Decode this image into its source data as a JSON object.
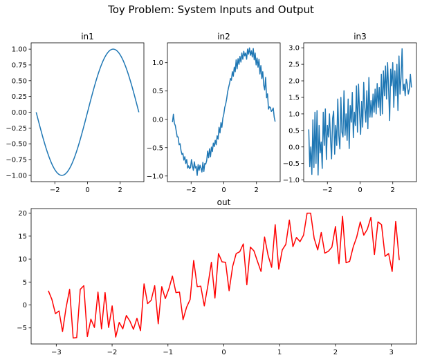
{
  "title": "Toy Problem: System Inputs and Output",
  "colors": {
    "blue": "#1f77b4",
    "red": "#ff0000",
    "axis": "#000000"
  },
  "chart_data": [
    {
      "type": "line",
      "title": "in1",
      "color": "#1f77b4",
      "xlim": [
        -3.45,
        3.45
      ],
      "ylim": [
        -1.1,
        1.1
      ],
      "xticks": [
        -2,
        0,
        2
      ],
      "yticks": [
        -1.0,
        -0.75,
        -0.5,
        -0.25,
        0.0,
        0.25,
        0.5,
        0.75,
        1.0
      ],
      "ytick_labels": [
        "−1.00",
        "−0.75",
        "−0.50",
        "−0.25",
        "0.00",
        "0.25",
        "0.50",
        "0.75",
        "1.00"
      ],
      "series": [
        {
          "function": "sin",
          "x_range": [
            -3.1416,
            3.1416
          ]
        }
      ]
    },
    {
      "type": "line",
      "title": "in2",
      "color": "#1f77b4",
      "xlim": [
        -3.45,
        3.45
      ],
      "ylim": [
        -1.1,
        1.35
      ],
      "xticks": [
        -2,
        0,
        2
      ],
      "yticks": [
        -1.0,
        -0.5,
        0.0,
        0.5,
        1.0
      ],
      "ytick_labels": [
        "−1.0",
        "−0.5",
        "0.0",
        "0.5",
        "1.0"
      ],
      "series": [
        {
          "x_range": [
            -3.1416,
            3.1416
          ],
          "y": [
            -0.05,
            0.09,
            -0.07,
            -0.11,
            -0.21,
            -0.31,
            -0.31,
            -0.45,
            -0.43,
            -0.55,
            -0.62,
            -0.6,
            -0.72,
            -0.66,
            -0.78,
            -0.71,
            -0.86,
            -0.82,
            -0.87,
            -0.85,
            -0.71,
            -0.82,
            -0.9,
            -0.75,
            -0.86,
            -0.83,
            -0.99,
            -0.8,
            -0.9,
            -0.81,
            -0.86,
            -0.93,
            -0.76,
            -0.92,
            -0.78,
            -0.79,
            -0.73,
            -0.56,
            -0.68,
            -0.52,
            -0.66,
            -0.49,
            -0.57,
            -0.42,
            -0.48,
            -0.37,
            -0.45,
            -0.29,
            -0.35,
            -0.14,
            -0.24,
            -0.06,
            -0.14,
            0.02,
            0.09,
            0.21,
            0.27,
            0.36,
            0.48,
            0.56,
            0.63,
            0.72,
            0.69,
            0.84,
            0.76,
            0.92,
            0.84,
            1.05,
            0.89,
            1.07,
            0.97,
            1.11,
            1.01,
            1.17,
            1.06,
            1.2,
            1.12,
            1.17,
            1.06,
            1.24,
            1.15,
            1.26,
            1.13,
            1.21,
            1.1,
            1.25,
            1.05,
            1.17,
            0.96,
            1.08,
            0.92,
            1.06,
            0.8,
            0.95,
            0.72,
            0.84,
            0.6,
            0.52,
            0.74,
            0.38,
            0.45,
            0.18,
            0.22,
            0.21,
            0.14,
            0.16,
            0.2,
            0.04,
            -0.04
          ]
        }
      ]
    },
    {
      "type": "line",
      "title": "in3",
      "color": "#1f77b4",
      "xlim": [
        -3.45,
        3.45
      ],
      "ylim": [
        -1.05,
        3.15
      ],
      "xticks": [
        -2,
        0,
        2
      ],
      "yticks": [
        -1.0,
        -0.5,
        0.0,
        0.5,
        1.0,
        1.5,
        2.0,
        2.5,
        3.0
      ],
      "ytick_labels": [
        "−1.0",
        "−0.5",
        "0.0",
        "0.5",
        "1.0",
        "1.5",
        "2.0",
        "2.5",
        "3.0"
      ],
      "series": [
        {
          "x_range": [
            -3.1416,
            3.1416
          ],
          "y": [
            0.53,
            -0.6,
            0.0,
            -0.83,
            0.82,
            -0.62,
            1.05,
            -0.5,
            1.1,
            -0.85,
            0.65,
            -0.18,
            0.15,
            -0.65,
            1.05,
            0.05,
            1.15,
            -0.38,
            0.65,
            0.3,
            1.0,
            0.24,
            -0.36,
            0.86,
            1.08,
            -0.22,
            0.65,
            0.05,
            1.45,
            0.35,
            -0.06,
            1.5,
            0.45,
            0.3,
            1.7,
            0.35,
            1.0,
            0.2,
            1.45,
            -0.05,
            1.25,
            0.75,
            1.65,
            0.28,
            1.05,
            0.65,
            1.85,
            0.45,
            1.9,
            1.05,
            0.38,
            1.38,
            0.6,
            1.95,
            1.2,
            0.75,
            1.7,
            0.55,
            2.1,
            0.9,
            1.4,
            0.9,
            1.6,
            1.05,
            1.75,
            1.0,
            1.92,
            1.2,
            1.8,
            0.95,
            2.2,
            1.0,
            2.3,
            1.55,
            2.45,
            1.45,
            2.55,
            1.75,
            0.8,
            2.35,
            1.85,
            2.55,
            1.2,
            2.3,
            1.55,
            2.5,
            1.1,
            2.75,
            1.6,
            2.1,
            2.97,
            1.7,
            1.9,
            1.55,
            2.05,
            1.9,
            1.6,
            1.75,
            2.2,
            1.8
          ]
        }
      ]
    },
    {
      "type": "line",
      "title": "out",
      "color": "#ff0000",
      "xlim": [
        -3.45,
        3.45
      ],
      "ylim": [
        -8.5,
        21.0
      ],
      "xticks": [
        -3,
        -2,
        -1,
        0,
        1,
        2,
        3
      ],
      "xtick_labels": [
        "−3",
        "−2",
        "−1",
        "0",
        "1",
        "2",
        "3"
      ],
      "yticks": [
        -5,
        0,
        5,
        10,
        15,
        20
      ],
      "ytick_labels": [
        "−5",
        "0",
        "5",
        "10",
        "15",
        "20"
      ],
      "series": [
        {
          "x_range": [
            -3.1416,
            3.1416
          ],
          "y": [
            3.1,
            1.2,
            -1.9,
            -1.3,
            -5.8,
            -0.6,
            3.4,
            -7.2,
            -7.1,
            3.4,
            4.2,
            -6.9,
            -3.1,
            -4.9,
            2.8,
            -5.2,
            2.7,
            -4.9,
            -0.2,
            -7.0,
            -3.8,
            -5.2,
            -2.3,
            -3.5,
            -5.3,
            -2.9,
            -5.6,
            4.6,
            0.3,
            1.0,
            4.2,
            -4.1,
            4.0,
            1.4,
            3.5,
            6.3,
            2.7,
            2.8,
            -3.2,
            -0.5,
            1.2,
            9.7,
            4.0,
            4.1,
            -0.2,
            4.2,
            9.3,
            1.5,
            11.2,
            9.4,
            9.3,
            3.1,
            8.4,
            11.2,
            11.6,
            13.3,
            4.4,
            12.6,
            11.8,
            9.5,
            7.3,
            14.8,
            10.8,
            8.2,
            17.5,
            7.8,
            12.0,
            13.2,
            18.5,
            12.7,
            14.7,
            13.8,
            15.2,
            20.0,
            20.0,
            14.5,
            12.0,
            15.8,
            11.3,
            11.7,
            12.6,
            17.1,
            9.0,
            19.3,
            9.2,
            9.5,
            12.6,
            14.8,
            18.1,
            15.2,
            16.5,
            19.1,
            11.0,
            18.1,
            17.5,
            10.6,
            11.2,
            7.3,
            18.2,
            9.8
          ]
        }
      ]
    }
  ]
}
